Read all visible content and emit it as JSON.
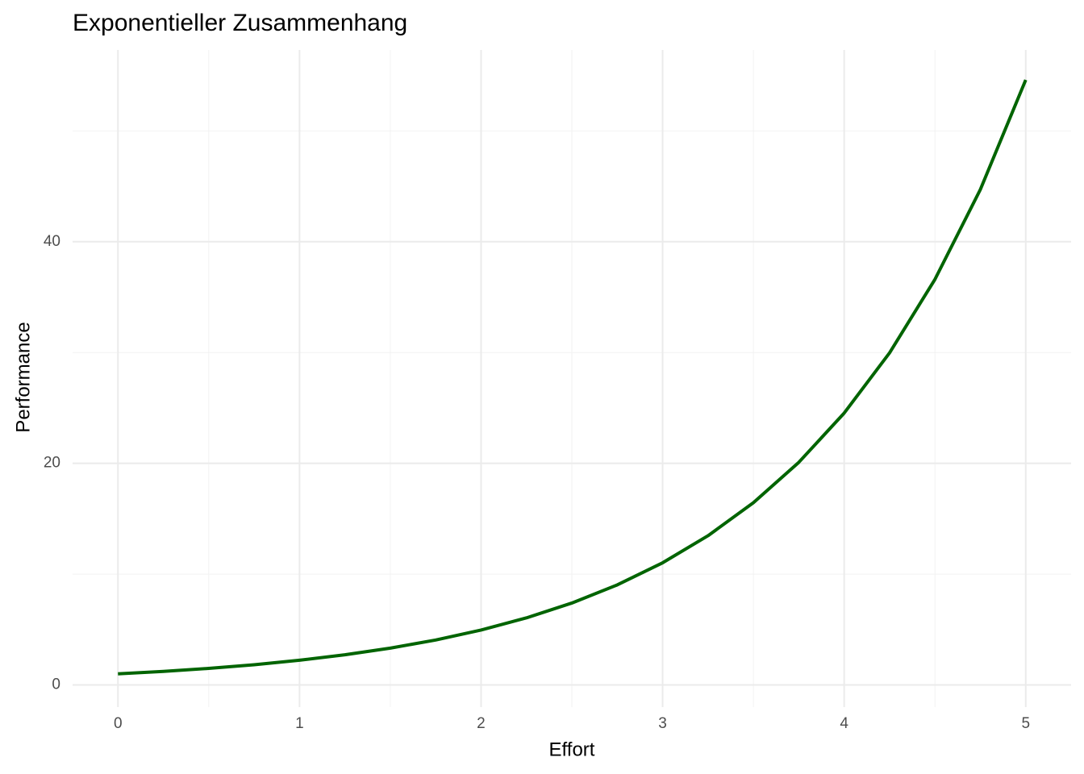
{
  "chart_data": {
    "type": "line",
    "title": "Exponentieller Zusammenhang",
    "x_label": "Effort",
    "y_label": "Performance",
    "x": [
      0,
      0.25,
      0.5,
      0.75,
      1,
      1.25,
      1.5,
      1.75,
      2,
      2.25,
      2.5,
      2.75,
      3,
      3.25,
      3.5,
      3.75,
      4,
      4.25,
      4.5,
      4.75,
      5
    ],
    "series": [
      {
        "name": "Performance",
        "color": "#006400",
        "values": [
          1,
          1.221,
          1.492,
          1.822,
          2.226,
          2.718,
          3.32,
          4.055,
          4.953,
          6.05,
          7.389,
          9.025,
          11.023,
          13.464,
          16.445,
          20.086,
          24.533,
          29.964,
          36.598,
          44.701,
          54.598
        ]
      }
    ],
    "xlim": [
      -0.25,
      5.25
    ],
    "ylim": [
      -2,
      57.3
    ],
    "xticks": [
      0,
      1,
      2,
      3,
      4,
      5
    ],
    "yticks": [
      0,
      20,
      40
    ],
    "minor_xticks": [
      0.5,
      1.5,
      2.5,
      3.5,
      4.5
    ],
    "minor_yticks": [
      10,
      30,
      50
    ],
    "grid": true
  }
}
